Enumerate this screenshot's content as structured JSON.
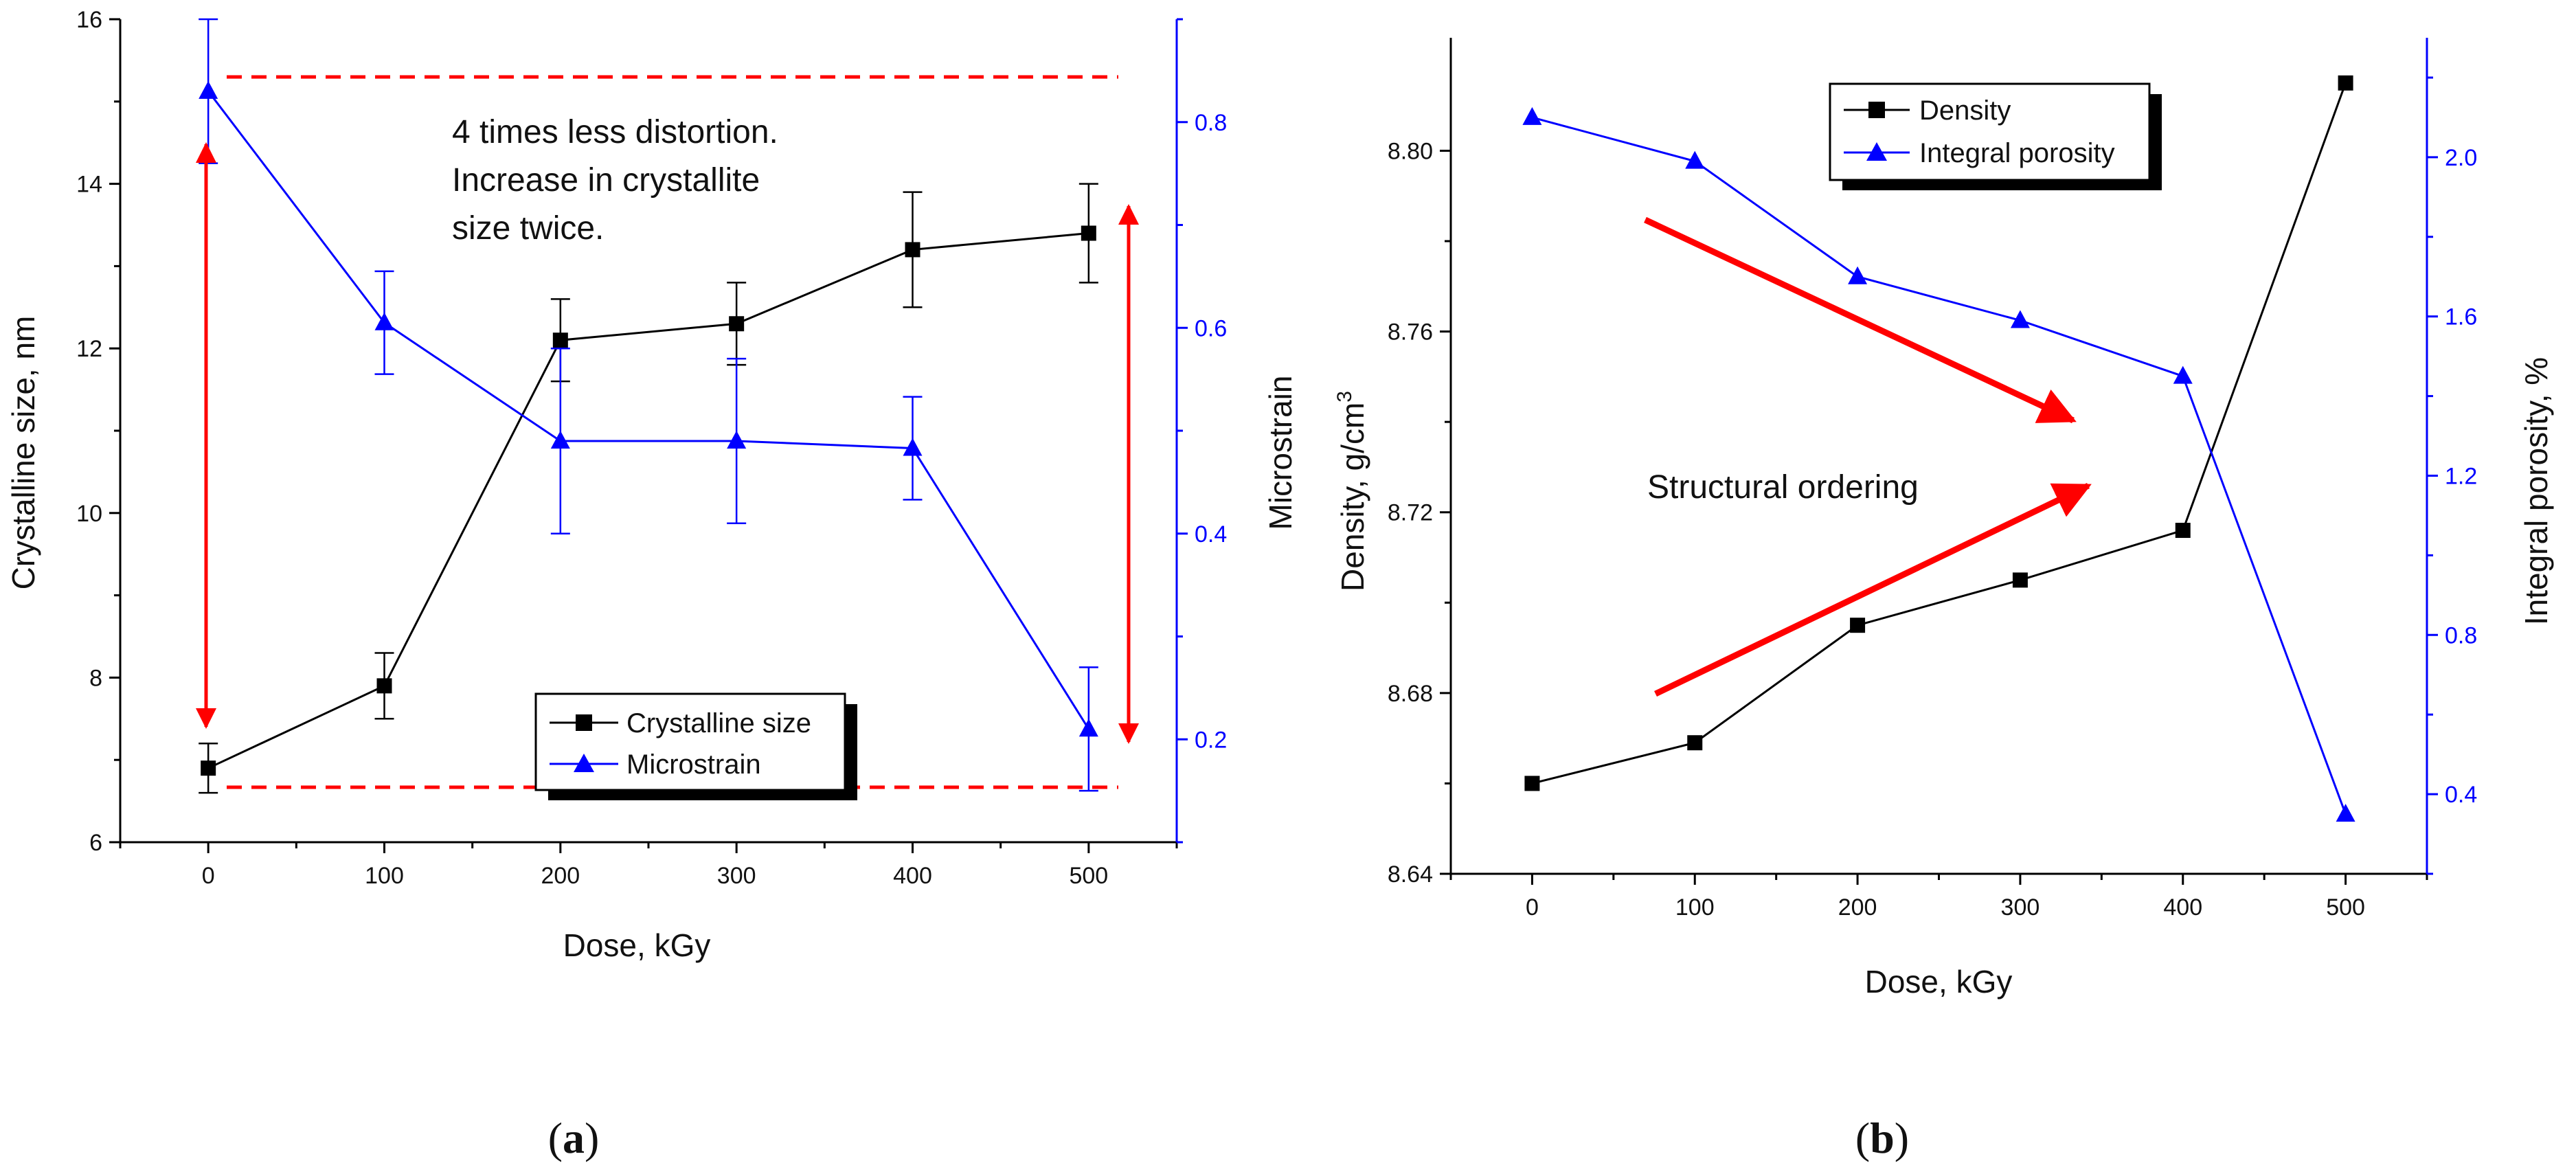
{
  "chart_data": [
    {
      "panel": "(a)",
      "panel_letter": "a",
      "type": "line",
      "title": "",
      "xlabel": "Dose, kGy",
      "ylabel": "Crystalline size, nm",
      "y2label": "Microstrain",
      "xlim": [
        -50,
        550
      ],
      "ylim": [
        6,
        16
      ],
      "y2lim": [
        0.1,
        0.9
      ],
      "x_ticks": [
        0,
        100,
        200,
        300,
        400,
        500
      ],
      "y_ticks": [
        6,
        8,
        10,
        12,
        14,
        16
      ],
      "y2_ticks": [
        0.2,
        0.4,
        0.6,
        0.8
      ],
      "y_tick_labels": [
        "6",
        "8",
        "10",
        "12",
        "14",
        "16"
      ],
      "y2_tick_labels": [
        "0.2",
        "0.4",
        "0.6",
        "0.8"
      ],
      "series": [
        {
          "name": "Crystalline size",
          "axis": "left",
          "color": "#000000",
          "marker": "square",
          "x": [
            0,
            100,
            200,
            300,
            400,
            500
          ],
          "values": [
            6.9,
            7.9,
            12.1,
            12.3,
            13.2,
            13.4
          ],
          "errors": [
            0.3,
            0.4,
            0.5,
            0.5,
            0.7,
            0.6
          ]
        },
        {
          "name": "Microstrain",
          "axis": "right",
          "color": "#0000ff",
          "marker": "triangle",
          "x": [
            0,
            100,
            200,
            300,
            400,
            500
          ],
          "values": [
            0.83,
            0.605,
            0.49,
            0.49,
            0.483,
            0.21
          ],
          "errors": [
            0.07,
            0.05,
            0.09,
            0.08,
            0.05,
            0.06
          ]
        }
      ],
      "annotation": [
        "4 times less distortion.",
        "Increase in crystallite",
        "size twice."
      ],
      "legend_position": "bottom-center"
    },
    {
      "panel": "(b)",
      "panel_letter": "b",
      "type": "line",
      "title": "",
      "xlabel": "Dose, kGy",
      "ylabel": "Density, g/cm",
      "ylabel_sup": "3",
      "y2label": "Integral porosity, %",
      "xlim": [
        -50,
        550
      ],
      "ylim": [
        8.64,
        8.825
      ],
      "y2lim": [
        0.2,
        2.3
      ],
      "x_ticks": [
        0,
        100,
        200,
        300,
        400,
        500
      ],
      "y_ticks": [
        8.64,
        8.68,
        8.72,
        8.76,
        8.8
      ],
      "y2_ticks": [
        0.4,
        0.8,
        1.2,
        1.6,
        2.0
      ],
      "y_tick_labels": [
        "8.64",
        "8.68",
        "8.72",
        "8.76",
        "8.80"
      ],
      "y2_tick_labels": [
        "0.4",
        "0.8",
        "1.2",
        "1.6",
        "2.0"
      ],
      "series": [
        {
          "name": "Density",
          "axis": "left",
          "color": "#000000",
          "marker": "square",
          "x": [
            0,
            100,
            200,
            300,
            400,
            500
          ],
          "values": [
            8.66,
            8.669,
            8.695,
            8.705,
            8.716,
            8.815
          ]
        },
        {
          "name": "Integral porosity",
          "axis": "right",
          "color": "#0000ff",
          "marker": "triangle",
          "x": [
            0,
            100,
            200,
            300,
            400,
            500
          ],
          "values": [
            2.1,
            1.99,
            1.7,
            1.59,
            1.45,
            0.35
          ]
        }
      ],
      "annotation": [
        "Structural ordering"
      ],
      "legend_position": "top-center"
    }
  ]
}
